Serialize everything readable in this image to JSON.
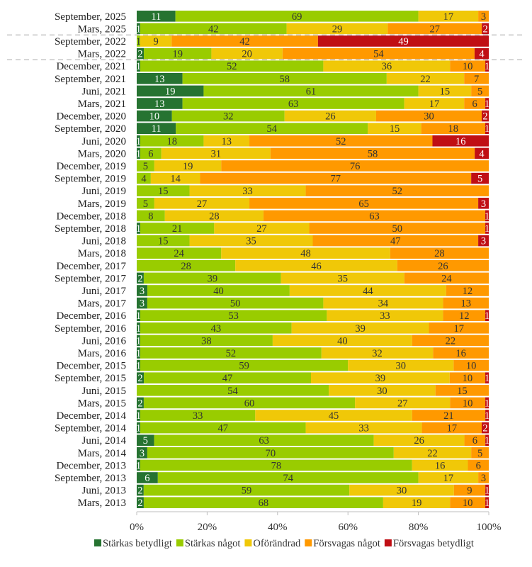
{
  "chart_data": {
    "type": "bar",
    "orientation": "horizontal",
    "stacked": true,
    "percent_scale": true,
    "title": "",
    "xlabel": "",
    "ylabel": "",
    "xlim": [
      0,
      100
    ],
    "xticks": [
      "0%",
      "20%",
      "40%",
      "60%",
      "80%",
      "100%"
    ],
    "grid": false,
    "legend_position": "bottom",
    "separators_after_categories": [
      "Mars, 2025",
      "Mars, 2022"
    ],
    "categories": [
      "September, 2025",
      "Mars, 2025",
      "September, 2022",
      "Mars, 2022",
      "December, 2021",
      "September, 2021",
      "Juni, 2021",
      "Mars, 2021",
      "December, 2020",
      "September, 2020",
      "Juni, 2020",
      "Mars, 2020",
      "December, 2019",
      "September, 2019",
      "Juni, 2019",
      "Mars, 2019",
      "December, 2018",
      "September, 2018",
      "Juni, 2018",
      "Mars, 2018",
      "December, 2017",
      "September, 2017",
      "Juni, 2017",
      "Mars, 2017",
      "December, 2016",
      "September, 2016",
      "Juni, 2016",
      "Mars, 2016",
      "December, 2015",
      "September, 2015",
      "Juni, 2015",
      "Mars, 2015",
      "December, 2014",
      "September, 2014",
      "Juni, 2014",
      "Mars, 2014",
      "December, 2013",
      "September, 2013",
      "Juni, 2013",
      "Mars, 2013"
    ],
    "series": [
      {
        "name": "Stärkas betydligt",
        "color": "#267331",
        "label_color": "#ffffff",
        "values": [
          11,
          1,
          0,
          2,
          1,
          13,
          19,
          13,
          10,
          11,
          1,
          1,
          0,
          0,
          0,
          0,
          0,
          1,
          0,
          0,
          0,
          2,
          3,
          3,
          1,
          1,
          1,
          1,
          1,
          2,
          0,
          2,
          1,
          1,
          5,
          3,
          1,
          6,
          2,
          2
        ]
      },
      {
        "name": "Stärkas något",
        "color": "#99cc00",
        "label_color": "#333333",
        "values": [
          69,
          42,
          1,
          19,
          52,
          58,
          61,
          63,
          32,
          54,
          18,
          6,
          5,
          4,
          15,
          5,
          8,
          21,
          15,
          24,
          28,
          39,
          40,
          50,
          53,
          43,
          38,
          52,
          59,
          47,
          54,
          60,
          33,
          47,
          63,
          70,
          78,
          74,
          59,
          68
        ]
      },
      {
        "name": "Oförändrad",
        "color": "#f0c808",
        "label_color": "#333333",
        "values": [
          17,
          29,
          9,
          20,
          36,
          22,
          15,
          17,
          26,
          15,
          13,
          31,
          19,
          14,
          33,
          27,
          28,
          27,
          35,
          48,
          46,
          35,
          44,
          34,
          33,
          39,
          40,
          32,
          30,
          39,
          30,
          27,
          45,
          33,
          26,
          22,
          16,
          17,
          30,
          19
        ]
      },
      {
        "name": "Försvagas något",
        "color": "#ff9900",
        "label_color": "#333333",
        "values": [
          3,
          27,
          42,
          54,
          10,
          7,
          5,
          6,
          30,
          18,
          52,
          58,
          76,
          77,
          52,
          65,
          63,
          50,
          47,
          28,
          26,
          24,
          12,
          13,
          12,
          17,
          22,
          16,
          10,
          10,
          15,
          10,
          21,
          17,
          6,
          5,
          6,
          3,
          9,
          10
        ]
      },
      {
        "name": "Försvagas betydligt",
        "color": "#c00f14",
        "label_color": "#ffffff",
        "values": [
          0,
          2,
          49,
          4,
          1,
          0,
          0,
          1,
          2,
          1,
          16,
          4,
          0,
          5,
          0,
          3,
          1,
          1,
          3,
          0,
          0,
          0,
          0,
          0,
          1,
          0,
          0,
          0,
          0,
          1,
          0,
          1,
          1,
          2,
          1,
          0,
          0,
          0,
          1,
          1
        ]
      }
    ]
  }
}
